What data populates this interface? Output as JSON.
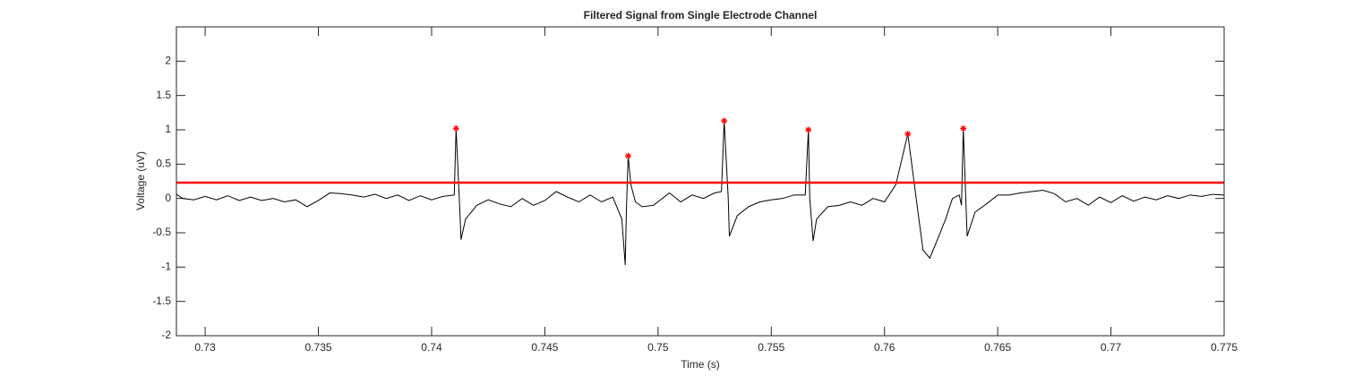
{
  "chart_data": {
    "type": "line",
    "title": "Filtered Signal from Single Electrode Channel",
    "xlabel": "Time (s)",
    "ylabel": "Voltage (uV)",
    "xlim": [
      0.72873,
      0.775
    ],
    "ylim": [
      -2,
      2.5
    ],
    "xticks": [
      0.73,
      0.735,
      0.74,
      0.745,
      0.75,
      0.755,
      0.76,
      0.765,
      0.77,
      0.775
    ],
    "yticks": [
      -2,
      -1.5,
      -1,
      -0.5,
      0,
      0.5,
      1,
      1.5,
      2
    ],
    "grid": false,
    "box": true,
    "series": [
      {
        "color": "#000000",
        "marker": "none",
        "x": [
          0.7287,
          0.729,
          0.7295,
          0.73,
          0.7305,
          0.731,
          0.7315,
          0.732,
          0.7325,
          0.733,
          0.7335,
          0.734,
          0.7345,
          0.735,
          0.7355,
          0.736,
          0.7365,
          0.737,
          0.7375,
          0.738,
          0.7385,
          0.739,
          0.7395,
          0.74,
          0.7405,
          0.741,
          0.74108,
          0.74125,
          0.7413,
          0.7415,
          0.742,
          0.7425,
          0.743,
          0.7435,
          0.744,
          0.7445,
          0.745,
          0.7455,
          0.746,
          0.7465,
          0.747,
          0.7475,
          0.748,
          0.7484,
          0.74855,
          0.7486,
          0.74868,
          0.7488,
          0.749,
          0.7493,
          0.7498,
          0.7505,
          0.751,
          0.7515,
          0.752,
          0.7525,
          0.7528,
          0.75292,
          0.7531,
          0.75315,
          0.7535,
          0.754,
          0.7545,
          0.755,
          0.7555,
          0.756,
          0.7565,
          0.75664,
          0.7567,
          0.75685,
          0.757,
          0.7575,
          0.758,
          0.7585,
          0.759,
          0.7595,
          0.76,
          0.7605,
          0.76103,
          0.7614,
          0.7617,
          0.762,
          0.7624,
          0.7627,
          0.763,
          0.7633,
          0.7634,
          0.76348,
          0.7636,
          0.76365,
          0.764,
          0.7645,
          0.765,
          0.7655,
          0.766,
          0.7665,
          0.767,
          0.7675,
          0.768,
          0.7685,
          0.769,
          0.7695,
          0.77,
          0.7705,
          0.771,
          0.7715,
          0.772,
          0.7725,
          0.773,
          0.7735,
          0.774,
          0.7745,
          0.775
        ],
        "values": [
          0.07,
          0,
          -0.02,
          0.03,
          -0.02,
          0.04,
          -0.03,
          0.02,
          -0.03,
          0,
          -0.05,
          -0.02,
          -0.12,
          -0.03,
          0.08,
          0.07,
          0.05,
          0.02,
          0.06,
          0,
          0.05,
          -0.03,
          0.04,
          -0.02,
          0.03,
          0.05,
          1.02,
          -0.2,
          -0.6,
          -0.3,
          -0.1,
          -0.02,
          -0.08,
          -0.12,
          0,
          -0.1,
          -0.03,
          0.1,
          0.02,
          -0.05,
          0.05,
          -0.05,
          0.02,
          -0.3,
          -0.97,
          -0.2,
          0.62,
          0.2,
          -0.05,
          -0.12,
          -0.1,
          0.08,
          -0.05,
          0.05,
          0,
          0.08,
          0.1,
          1.13,
          0,
          -0.55,
          -0.25,
          -0.12,
          -0.05,
          -0.02,
          0,
          0.05,
          0.05,
          1,
          0,
          -0.62,
          -0.3,
          -0.12,
          -0.1,
          -0.05,
          -0.1,
          0,
          -0.05,
          0.2,
          0.94,
          0,
          -0.75,
          -0.87,
          -0.55,
          -0.3,
          0,
          0.05,
          -0.1,
          1.02,
          -0.1,
          -0.55,
          -0.2,
          -0.08,
          0.05,
          0.05,
          0.08,
          0.1,
          0.12,
          0.07,
          -0.05,
          0,
          -0.1,
          0.02,
          -0.06,
          0.04,
          -0.04,
          0.02,
          -0.02,
          0.04,
          0,
          0.05,
          0.03,
          0.06,
          0.05
        ]
      },
      {
        "color": "#ff0000",
        "marker": "none",
        "x": [
          0.72873,
          0.775
        ],
        "values": [
          0.23,
          0.23
        ]
      },
      {
        "color": "#ff0000",
        "marker": "*",
        "x": [
          0.74108,
          0.74868,
          0.75292,
          0.75664,
          0.76103,
          0.76348
        ],
        "values": [
          1.02,
          0.62,
          1.13,
          1.0,
          0.94,
          1.02
        ]
      }
    ]
  }
}
